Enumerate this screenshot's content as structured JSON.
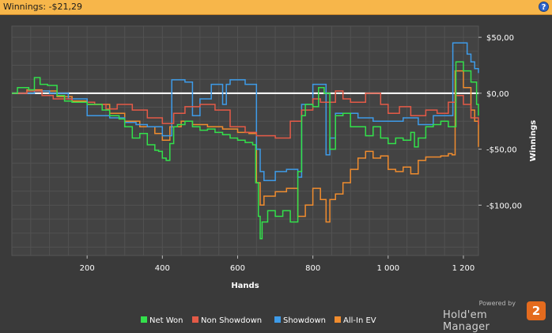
{
  "window": {
    "title": "Winnings: -$21,29",
    "help_label": "?"
  },
  "branding": {
    "powered_by": "Powered by",
    "product": "Hold'em Manager",
    "badge": "2"
  },
  "colors": {
    "net_won": "#33e04b",
    "non_showdown": "#e45a47",
    "showdown": "#3e9be8",
    "all_in_ev": "#f08c2e",
    "zero_line": "#ffffff"
  },
  "chart_data": {
    "type": "line",
    "title": "",
    "xlabel": "Hands",
    "ylabel": "Winnings",
    "xlim": [
      0,
      1240
    ],
    "ylim": [
      -145,
      60
    ],
    "xticks": [
      {
        "value": 200,
        "label": "200"
      },
      {
        "value": 400,
        "label": "400"
      },
      {
        "value": 600,
        "label": "600"
      },
      {
        "value": 800,
        "label": "800"
      },
      {
        "value": 1000,
        "label": "1 000"
      },
      {
        "value": 1200,
        "label": "1 200"
      }
    ],
    "yticks": [
      {
        "value": 50,
        "label": "$50,00"
      },
      {
        "value": 0,
        "label": "$0,00"
      },
      {
        "value": -50,
        "label": "-$50,00"
      },
      {
        "value": -100,
        "label": "-$100,00"
      }
    ],
    "grid": true,
    "legend_position": "bottom",
    "series": [
      {
        "name": "Net Won",
        "color": "#33e04b",
        "points": [
          [
            0,
            0
          ],
          [
            15,
            5
          ],
          [
            45,
            3
          ],
          [
            60,
            14
          ],
          [
            75,
            8
          ],
          [
            95,
            7
          ],
          [
            120,
            -2
          ],
          [
            140,
            -7
          ],
          [
            160,
            -8
          ],
          [
            200,
            -10
          ],
          [
            240,
            -15
          ],
          [
            260,
            -20
          ],
          [
            285,
            -23
          ],
          [
            300,
            -30
          ],
          [
            320,
            -40
          ],
          [
            340,
            -36
          ],
          [
            360,
            -46
          ],
          [
            380,
            -51
          ],
          [
            390,
            -52
          ],
          [
            400,
            -58
          ],
          [
            410,
            -60
          ],
          [
            420,
            -45
          ],
          [
            430,
            -30
          ],
          [
            440,
            -28
          ],
          [
            460,
            -25
          ],
          [
            480,
            -30
          ],
          [
            500,
            -33
          ],
          [
            520,
            -32
          ],
          [
            540,
            -35
          ],
          [
            560,
            -37
          ],
          [
            580,
            -40
          ],
          [
            600,
            -42
          ],
          [
            620,
            -44
          ],
          [
            640,
            -46
          ],
          [
            648,
            -80
          ],
          [
            655,
            -110
          ],
          [
            660,
            -130
          ],
          [
            665,
            -115
          ],
          [
            680,
            -105
          ],
          [
            700,
            -110
          ],
          [
            720,
            -105
          ],
          [
            740,
            -115
          ],
          [
            760,
            -70
          ],
          [
            770,
            -20
          ],
          [
            780,
            -10
          ],
          [
            800,
            -12
          ],
          [
            815,
            5
          ],
          [
            830,
            0
          ],
          [
            845,
            -50
          ],
          [
            860,
            -20
          ],
          [
            880,
            -18
          ],
          [
            900,
            -30
          ],
          [
            940,
            -38
          ],
          [
            960,
            -30
          ],
          [
            980,
            -40
          ],
          [
            1000,
            -45
          ],
          [
            1020,
            -40
          ],
          [
            1040,
            -42
          ],
          [
            1060,
            -35
          ],
          [
            1070,
            -48
          ],
          [
            1080,
            -40
          ],
          [
            1100,
            -30
          ],
          [
            1120,
            -28
          ],
          [
            1140,
            -25
          ],
          [
            1160,
            -30
          ],
          [
            1172,
            -30
          ],
          [
            1180,
            28
          ],
          [
            1200,
            20
          ],
          [
            1220,
            10
          ],
          [
            1235,
            -10
          ],
          [
            1240,
            -20
          ]
        ]
      },
      {
        "name": "Non Showdown",
        "color": "#e45a47",
        "points": [
          [
            0,
            0
          ],
          [
            40,
            2
          ],
          [
            80,
            -2
          ],
          [
            110,
            -5
          ],
          [
            160,
            -8
          ],
          [
            220,
            -10
          ],
          [
            250,
            -14
          ],
          [
            280,
            -10
          ],
          [
            320,
            -15
          ],
          [
            360,
            -22
          ],
          [
            400,
            -27
          ],
          [
            430,
            -18
          ],
          [
            460,
            -12
          ],
          [
            500,
            -10
          ],
          [
            540,
            -15
          ],
          [
            580,
            -30
          ],
          [
            620,
            -35
          ],
          [
            650,
            -38
          ],
          [
            700,
            -40
          ],
          [
            740,
            -25
          ],
          [
            770,
            -15
          ],
          [
            800,
            -5
          ],
          [
            820,
            -8
          ],
          [
            860,
            2
          ],
          [
            880,
            -5
          ],
          [
            900,
            -8
          ],
          [
            940,
            0
          ],
          [
            980,
            -10
          ],
          [
            1000,
            -18
          ],
          [
            1030,
            -12
          ],
          [
            1060,
            -20
          ],
          [
            1100,
            -15
          ],
          [
            1130,
            -18
          ],
          [
            1160,
            -8
          ],
          [
            1180,
            -2
          ],
          [
            1200,
            -10
          ],
          [
            1220,
            -22
          ],
          [
            1240,
            -28
          ]
        ]
      },
      {
        "name": "Showdown",
        "color": "#3e9be8",
        "points": [
          [
            0,
            0
          ],
          [
            60,
            2
          ],
          [
            100,
            0
          ],
          [
            150,
            -5
          ],
          [
            200,
            -20
          ],
          [
            260,
            -22
          ],
          [
            300,
            -26
          ],
          [
            330,
            -28
          ],
          [
            360,
            -30
          ],
          [
            400,
            -38
          ],
          [
            415,
            -38
          ],
          [
            420,
            -38
          ],
          [
            425,
            12
          ],
          [
            460,
            10
          ],
          [
            480,
            -20
          ],
          [
            500,
            -5
          ],
          [
            530,
            8
          ],
          [
            560,
            -10
          ],
          [
            570,
            8
          ],
          [
            580,
            12
          ],
          [
            600,
            12
          ],
          [
            620,
            8
          ],
          [
            640,
            8
          ],
          [
            650,
            -50
          ],
          [
            660,
            -70
          ],
          [
            670,
            -78
          ],
          [
            700,
            -70
          ],
          [
            730,
            -68
          ],
          [
            760,
            -75
          ],
          [
            770,
            -10
          ],
          [
            790,
            -10
          ],
          [
            800,
            8
          ],
          [
            820,
            8
          ],
          [
            835,
            -55
          ],
          [
            845,
            -40
          ],
          [
            860,
            -18
          ],
          [
            880,
            -18
          ],
          [
            920,
            -22
          ],
          [
            960,
            -25
          ],
          [
            1000,
            -25
          ],
          [
            1040,
            -22
          ],
          [
            1080,
            -28
          ],
          [
            1120,
            -20
          ],
          [
            1160,
            -20
          ],
          [
            1168,
            -20
          ],
          [
            1172,
            45
          ],
          [
            1200,
            45
          ],
          [
            1210,
            35
          ],
          [
            1220,
            28
          ],
          [
            1230,
            22
          ],
          [
            1240,
            18
          ]
        ]
      },
      {
        "name": "All-In EV",
        "color": "#f08c2e",
        "points": [
          [
            0,
            0
          ],
          [
            40,
            3
          ],
          [
            80,
            2
          ],
          [
            120,
            -3
          ],
          [
            160,
            -7
          ],
          [
            200,
            -10
          ],
          [
            260,
            -18
          ],
          [
            300,
            -25
          ],
          [
            340,
            -30
          ],
          [
            380,
            -36
          ],
          [
            400,
            -42
          ],
          [
            420,
            -30
          ],
          [
            450,
            -25
          ],
          [
            480,
            -28
          ],
          [
            520,
            -30
          ],
          [
            560,
            -32
          ],
          [
            600,
            -35
          ],
          [
            630,
            -36
          ],
          [
            650,
            -80
          ],
          [
            660,
            -100
          ],
          [
            670,
            -92
          ],
          [
            700,
            -88
          ],
          [
            730,
            -85
          ],
          [
            760,
            -110
          ],
          [
            780,
            -100
          ],
          [
            800,
            -85
          ],
          [
            820,
            -95
          ],
          [
            835,
            -115
          ],
          [
            845,
            -95
          ],
          [
            860,
            -90
          ],
          [
            880,
            -80
          ],
          [
            900,
            -68
          ],
          [
            920,
            -58
          ],
          [
            940,
            -52
          ],
          [
            960,
            -58
          ],
          [
            980,
            -56
          ],
          [
            1000,
            -68
          ],
          [
            1020,
            -70
          ],
          [
            1040,
            -66
          ],
          [
            1060,
            -72
          ],
          [
            1080,
            -60
          ],
          [
            1100,
            -57
          ],
          [
            1140,
            -56
          ],
          [
            1160,
            -54
          ],
          [
            1170,
            -55
          ],
          [
            1178,
            20
          ],
          [
            1200,
            5
          ],
          [
            1220,
            -15
          ],
          [
            1230,
            -25
          ],
          [
            1240,
            -48
          ]
        ]
      }
    ]
  }
}
